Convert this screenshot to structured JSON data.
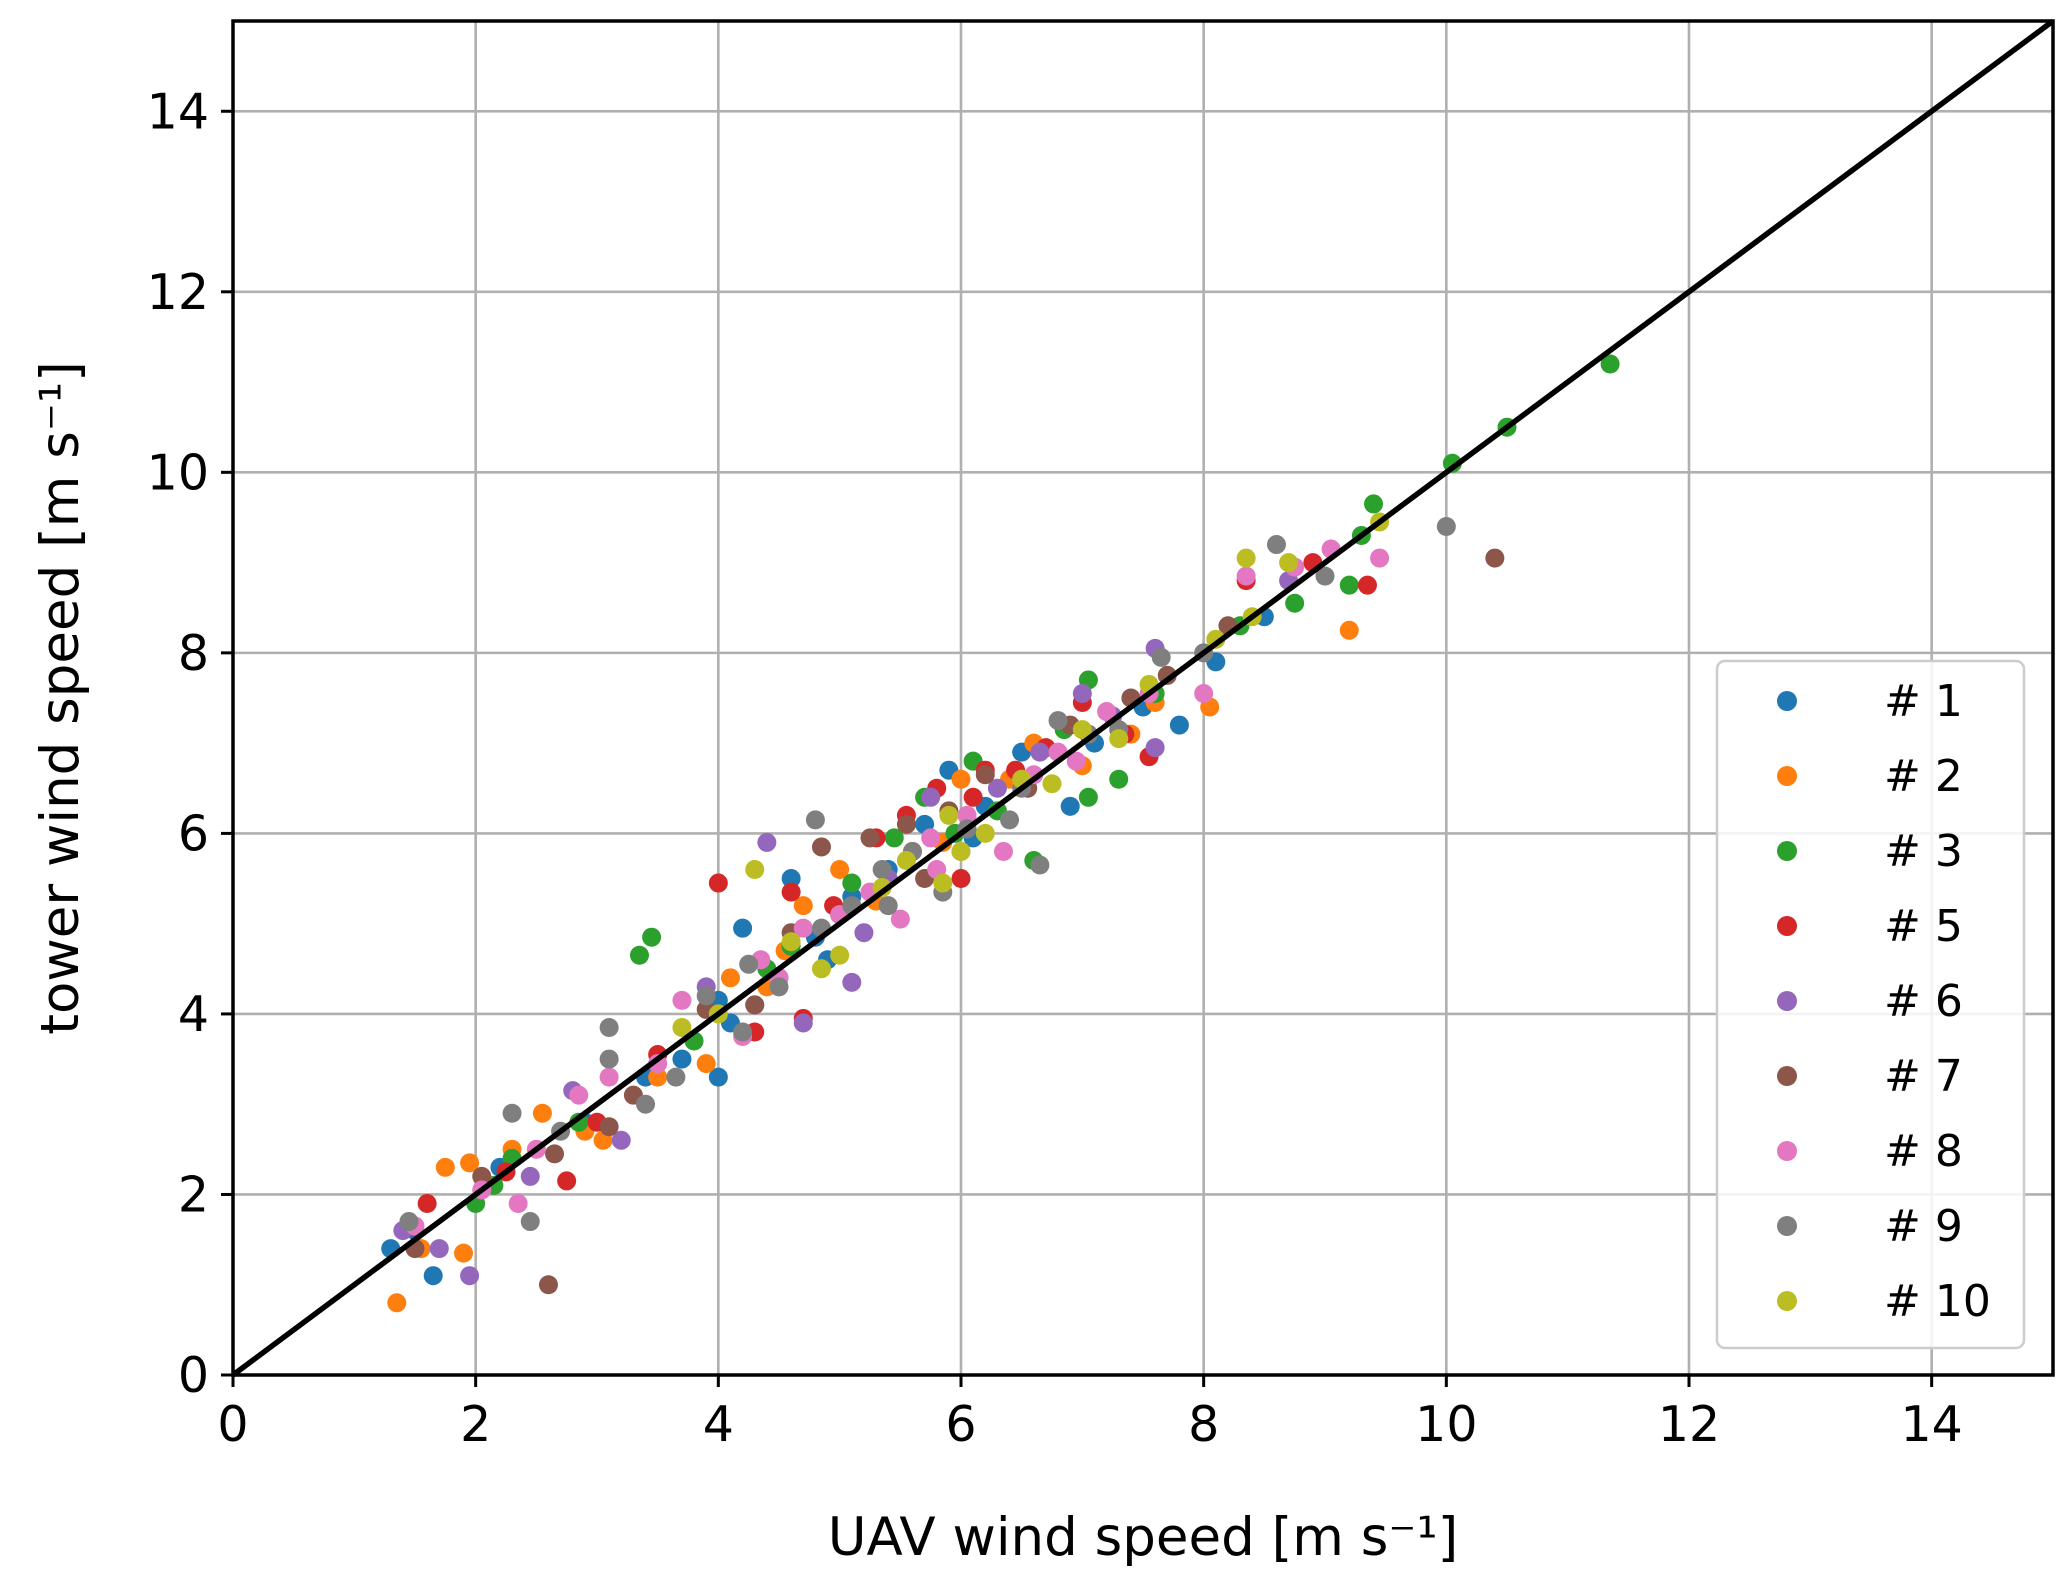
{
  "chart_data": {
    "type": "scatter",
    "title": "",
    "xlabel": "UAV wind speed [m s⁻¹]",
    "ylabel": "tower wind speed [m s⁻¹]",
    "xlim": [
      0,
      15
    ],
    "ylim": [
      0,
      15
    ],
    "xticks": [
      0,
      2,
      4,
      6,
      8,
      10,
      12,
      14
    ],
    "yticks": [
      0,
      2,
      4,
      6,
      8,
      10,
      12,
      14
    ],
    "grid": true,
    "legend_position": "lower-right",
    "reference_line": {
      "from": [
        0,
        0
      ],
      "to": [
        15,
        15
      ],
      "color": "#000000"
    },
    "series": [
      {
        "name": "# 1",
        "color": "#1f77b4",
        "points": [
          [
            1.3,
            1.4
          ],
          [
            1.5,
            1.6
          ],
          [
            1.65,
            1.1
          ],
          [
            2.2,
            2.3
          ],
          [
            2.9,
            2.8
          ],
          [
            3.4,
            3.3
          ],
          [
            3.7,
            3.5
          ],
          [
            4.0,
            3.3
          ],
          [
            4.0,
            4.15
          ],
          [
            4.2,
            4.95
          ],
          [
            4.5,
            4.4
          ],
          [
            4.6,
            5.5
          ],
          [
            4.8,
            4.85
          ],
          [
            5.1,
            5.3
          ],
          [
            5.4,
            5.6
          ],
          [
            5.7,
            6.1
          ],
          [
            5.9,
            6.7
          ],
          [
            6.2,
            6.3
          ],
          [
            6.5,
            6.9
          ],
          [
            6.9,
            6.3
          ],
          [
            7.1,
            7.0
          ],
          [
            7.5,
            7.4
          ],
          [
            7.8,
            7.2
          ],
          [
            8.1,
            7.9
          ],
          [
            8.5,
            8.4
          ],
          [
            4.1,
            3.9
          ],
          [
            4.9,
            4.6
          ],
          [
            6.1,
            5.95
          ]
        ]
      },
      {
        "name": "# 2",
        "color": "#ff7f0e",
        "points": [
          [
            1.35,
            0.8
          ],
          [
            1.55,
            1.4
          ],
          [
            1.75,
            2.3
          ],
          [
            1.9,
            1.35
          ],
          [
            1.95,
            2.35
          ],
          [
            2.3,
            2.5
          ],
          [
            2.55,
            2.9
          ],
          [
            2.9,
            2.7
          ],
          [
            3.05,
            2.6
          ],
          [
            3.5,
            3.3
          ],
          [
            3.9,
            3.45
          ],
          [
            4.1,
            4.4
          ],
          [
            4.4,
            4.3
          ],
          [
            4.7,
            5.2
          ],
          [
            5.0,
            5.6
          ],
          [
            5.3,
            5.25
          ],
          [
            5.6,
            5.8
          ],
          [
            6.0,
            6.6
          ],
          [
            6.4,
            6.6
          ],
          [
            6.6,
            7.0
          ],
          [
            7.0,
            6.75
          ],
          [
            7.4,
            7.1
          ],
          [
            7.6,
            7.45
          ],
          [
            8.05,
            7.4
          ],
          [
            9.2,
            8.25
          ],
          [
            5.85,
            5.9
          ],
          [
            4.55,
            4.7
          ]
        ]
      },
      {
        "name": "# 3",
        "color": "#2ca02c",
        "points": [
          [
            2.0,
            1.9
          ],
          [
            2.15,
            2.1
          ],
          [
            2.3,
            2.4
          ],
          [
            2.85,
            2.8
          ],
          [
            3.35,
            4.65
          ],
          [
            3.45,
            4.85
          ],
          [
            3.8,
            3.7
          ],
          [
            4.4,
            4.5
          ],
          [
            4.6,
            4.75
          ],
          [
            5.1,
            5.45
          ],
          [
            5.45,
            5.95
          ],
          [
            5.7,
            6.4
          ],
          [
            6.1,
            6.8
          ],
          [
            6.3,
            6.25
          ],
          [
            6.6,
            5.7
          ],
          [
            6.85,
            7.15
          ],
          [
            7.05,
            7.7
          ],
          [
            7.3,
            6.6
          ],
          [
            7.6,
            7.55
          ],
          [
            8.3,
            8.3
          ],
          [
            8.75,
            8.55
          ],
          [
            9.2,
            8.75
          ],
          [
            9.3,
            9.3
          ],
          [
            9.4,
            9.65
          ],
          [
            10.05,
            10.1
          ],
          [
            10.5,
            10.5
          ],
          [
            11.35,
            11.2
          ],
          [
            5.95,
            6.0
          ],
          [
            7.05,
            6.4
          ]
        ]
      },
      {
        "name": "# 5",
        "color": "#d62728",
        "points": [
          [
            1.6,
            1.9
          ],
          [
            2.25,
            2.25
          ],
          [
            2.75,
            2.15
          ],
          [
            3.0,
            2.8
          ],
          [
            3.5,
            3.55
          ],
          [
            4.0,
            5.45
          ],
          [
            4.3,
            3.8
          ],
          [
            4.6,
            5.35
          ],
          [
            4.95,
            5.2
          ],
          [
            5.3,
            5.95
          ],
          [
            5.55,
            6.2
          ],
          [
            5.8,
            6.5
          ],
          [
            6.0,
            5.5
          ],
          [
            6.2,
            6.7
          ],
          [
            6.45,
            6.7
          ],
          [
            6.7,
            6.95
          ],
          [
            7.0,
            7.45
          ],
          [
            7.35,
            7.1
          ],
          [
            7.55,
            6.85
          ],
          [
            8.35,
            8.8
          ],
          [
            8.9,
            9.0
          ],
          [
            9.35,
            8.75
          ],
          [
            4.7,
            3.95
          ],
          [
            6.1,
            6.4
          ]
        ]
      },
      {
        "name": "# 6",
        "color": "#9467bd",
        "points": [
          [
            1.4,
            1.6
          ],
          [
            1.7,
            1.4
          ],
          [
            1.95,
            1.1
          ],
          [
            2.45,
            2.2
          ],
          [
            2.8,
            3.15
          ],
          [
            3.2,
            2.6
          ],
          [
            3.9,
            4.3
          ],
          [
            4.4,
            5.9
          ],
          [
            4.7,
            3.9
          ],
          [
            5.1,
            4.35
          ],
          [
            5.4,
            5.5
          ],
          [
            5.75,
            6.4
          ],
          [
            6.0,
            5.8
          ],
          [
            6.3,
            6.5
          ],
          [
            6.65,
            6.9
          ],
          [
            7.0,
            7.55
          ],
          [
            7.25,
            7.3
          ],
          [
            7.6,
            6.95
          ],
          [
            7.6,
            8.05
          ],
          [
            8.7,
            8.8
          ],
          [
            5.2,
            4.9
          ],
          [
            4.3,
            4.1
          ]
        ]
      },
      {
        "name": "# 7",
        "color": "#8c564b",
        "points": [
          [
            1.5,
            1.4
          ],
          [
            2.05,
            2.2
          ],
          [
            2.6,
            1.0
          ],
          [
            2.65,
            2.45
          ],
          [
            3.1,
            2.75
          ],
          [
            3.3,
            3.1
          ],
          [
            3.9,
            4.05
          ],
          [
            4.3,
            4.1
          ],
          [
            4.85,
            5.85
          ],
          [
            5.0,
            5.1
          ],
          [
            5.25,
            5.95
          ],
          [
            5.55,
            6.1
          ],
          [
            5.9,
            6.25
          ],
          [
            6.2,
            6.65
          ],
          [
            6.55,
            6.5
          ],
          [
            6.9,
            7.2
          ],
          [
            7.4,
            7.5
          ],
          [
            7.7,
            7.75
          ],
          [
            8.2,
            8.3
          ],
          [
            10.4,
            9.05
          ],
          [
            4.6,
            4.9
          ],
          [
            5.7,
            5.5
          ]
        ]
      },
      {
        "name": "# 8",
        "color": "#e377c2",
        "points": [
          [
            1.5,
            1.65
          ],
          [
            2.05,
            2.05
          ],
          [
            2.35,
            1.9
          ],
          [
            2.5,
            2.5
          ],
          [
            2.85,
            3.1
          ],
          [
            3.1,
            3.3
          ],
          [
            3.5,
            3.45
          ],
          [
            3.7,
            4.15
          ],
          [
            4.2,
            3.75
          ],
          [
            4.35,
            4.6
          ],
          [
            4.7,
            4.95
          ],
          [
            5.0,
            5.1
          ],
          [
            5.25,
            5.35
          ],
          [
            5.5,
            5.05
          ],
          [
            5.75,
            5.95
          ],
          [
            6.05,
            6.2
          ],
          [
            6.35,
            5.8
          ],
          [
            6.6,
            6.65
          ],
          [
            6.95,
            6.8
          ],
          [
            7.2,
            7.35
          ],
          [
            7.55,
            7.55
          ],
          [
            8.0,
            7.55
          ],
          [
            8.35,
            8.85
          ],
          [
            8.75,
            8.95
          ],
          [
            9.05,
            9.15
          ],
          [
            9.45,
            9.05
          ],
          [
            5.8,
            5.6
          ],
          [
            4.5,
            4.4
          ],
          [
            6.8,
            6.9
          ]
        ]
      },
      {
        "name": "# 9",
        "color": "#7f7f7f",
        "points": [
          [
            1.45,
            1.7
          ],
          [
            2.3,
            2.9
          ],
          [
            2.45,
            1.7
          ],
          [
            2.7,
            2.7
          ],
          [
            3.1,
            3.5
          ],
          [
            3.1,
            3.85
          ],
          [
            3.4,
            3.0
          ],
          [
            3.65,
            3.3
          ],
          [
            3.9,
            4.2
          ],
          [
            4.25,
            4.55
          ],
          [
            4.5,
            4.3
          ],
          [
            4.8,
            6.15
          ],
          [
            4.85,
            4.95
          ],
          [
            5.1,
            5.2
          ],
          [
            5.35,
            5.6
          ],
          [
            5.6,
            5.8
          ],
          [
            5.85,
            5.35
          ],
          [
            6.05,
            6.05
          ],
          [
            6.4,
            6.15
          ],
          [
            6.65,
            5.65
          ],
          [
            6.8,
            7.25
          ],
          [
            7.05,
            7.1
          ],
          [
            7.3,
            7.15
          ],
          [
            7.65,
            7.95
          ],
          [
            8.0,
            8.0
          ],
          [
            8.6,
            9.2
          ],
          [
            9.0,
            8.85
          ],
          [
            10.0,
            9.4
          ],
          [
            4.2,
            3.8
          ],
          [
            5.4,
            5.2
          ],
          [
            6.5,
            6.5
          ]
        ]
      },
      {
        "name": "# 10",
        "color": "#bcbd22",
        "points": [
          [
            3.7,
            3.85
          ],
          [
            4.0,
            4.0
          ],
          [
            4.3,
            5.6
          ],
          [
            4.6,
            4.8
          ],
          [
            4.85,
            4.5
          ],
          [
            5.0,
            4.65
          ],
          [
            5.35,
            5.4
          ],
          [
            5.55,
            5.7
          ],
          [
            5.85,
            5.45
          ],
          [
            6.0,
            5.8
          ],
          [
            6.2,
            6.0
          ],
          [
            6.5,
            6.6
          ],
          [
            6.75,
            6.55
          ],
          [
            7.0,
            7.15
          ],
          [
            7.3,
            7.05
          ],
          [
            7.55,
            7.65
          ],
          [
            8.1,
            8.15
          ],
          [
            8.4,
            8.4
          ],
          [
            8.35,
            9.05
          ],
          [
            8.7,
            9.0
          ],
          [
            9.45,
            9.45
          ],
          [
            5.9,
            6.2
          ]
        ]
      }
    ]
  }
}
